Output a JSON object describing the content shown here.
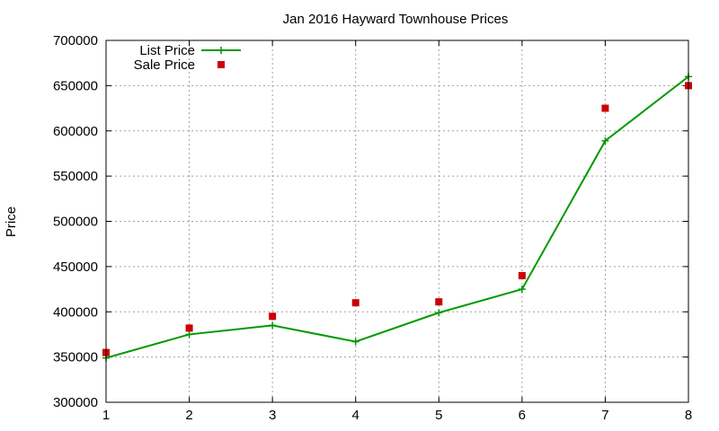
{
  "chart_data": {
    "type": "line",
    "title": "Jan 2016 Hayward Townhouse Prices",
    "xlabel": "",
    "ylabel": "Price",
    "x": [
      1,
      2,
      3,
      4,
      5,
      6,
      7,
      8
    ],
    "xlim": [
      1,
      8
    ],
    "ylim": [
      300000,
      700000
    ],
    "xticks": [
      "1",
      "2",
      "3",
      "4",
      "5",
      "6",
      "7",
      "8"
    ],
    "yticks": [
      "300000",
      "350000",
      "400000",
      "450000",
      "500000",
      "550000",
      "600000",
      "650000",
      "700000"
    ],
    "ytick_values": [
      300000,
      350000,
      400000,
      450000,
      500000,
      550000,
      600000,
      650000,
      700000
    ],
    "grid": true,
    "legend_position": "top-left",
    "series": [
      {
        "name": "List Price",
        "style": "line-with-plus-markers",
        "color": "#009900",
        "values": [
          349000,
          375000,
          385000,
          367000,
          399000,
          425000,
          589000,
          660000
        ]
      },
      {
        "name": "Sale Price",
        "style": "square-markers",
        "color": "#cc0000",
        "values": [
          355000,
          382000,
          395000,
          410000,
          411000,
          440000,
          625000,
          650000
        ]
      }
    ]
  }
}
